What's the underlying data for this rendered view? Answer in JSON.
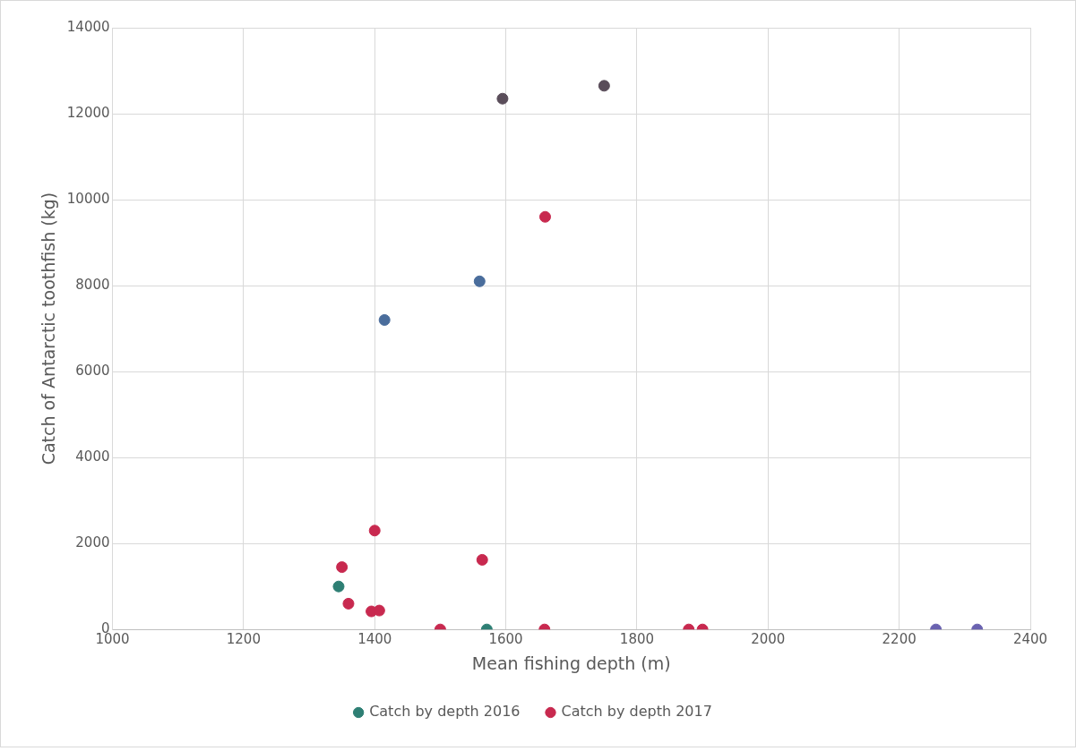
{
  "chart_data": {
    "type": "scatter",
    "xlabel": "Mean fishing depth (m)",
    "ylabel": "Catch of Antarctic toothfish (kg)",
    "xlim": [
      1000,
      2400
    ],
    "xticks": [
      1000,
      1200,
      1400,
      1600,
      1800,
      2000,
      2200,
      2400
    ],
    "ylim": [
      0,
      14000
    ],
    "yticks": [
      0,
      2000,
      4000,
      6000,
      8000,
      10000,
      12000,
      14000
    ],
    "grid": true,
    "legend": "bottom",
    "marker": "circle",
    "series": [
      {
        "name": "Catch by depth 2016",
        "color": "#2e7f74",
        "x": [
          1345,
          1571,
          1415,
          1560,
          1595,
          1750,
          2256,
          2319
        ],
        "values": [
          1000,
          0,
          7200,
          8100,
          12350,
          12650,
          0,
          0
        ],
        "colors": [
          "#2e7f74",
          "#2e7f74",
          "#4a6d9c",
          "#4a6d9c",
          "#5a4d5a",
          "#5a4d5a",
          "#6a62b0",
          "#6a62b0"
        ]
      },
      {
        "name": "Catch by depth 2017",
        "color": "#c8294f",
        "x": [
          1660,
          1400,
          1350,
          1360,
          1395,
          1407,
          1500,
          1564,
          1659,
          1879,
          1900
        ],
        "values": [
          9600,
          2300,
          1450,
          600,
          420,
          440,
          0,
          1620,
          0,
          0,
          0
        ]
      }
    ]
  }
}
